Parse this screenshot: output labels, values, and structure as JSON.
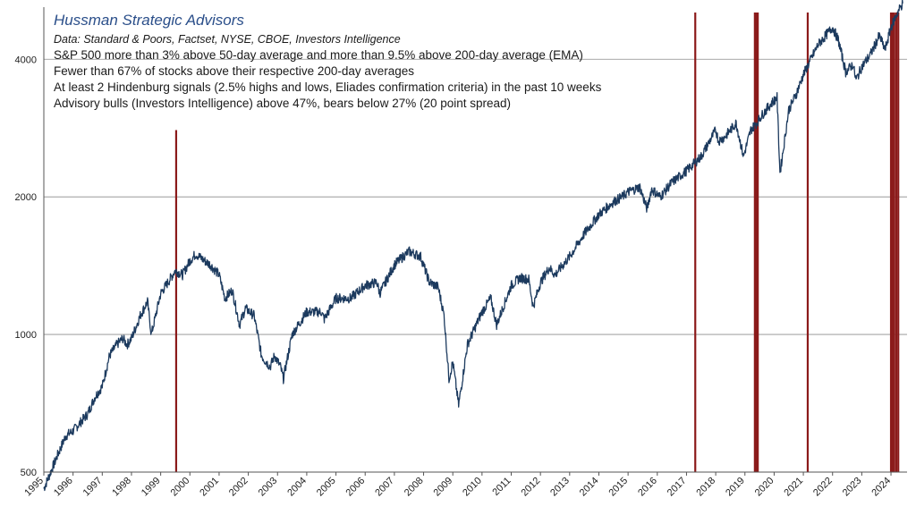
{
  "chart_data": {
    "type": "line",
    "title": "Hussman Strategic Advisors",
    "subtitle": "Data: Standard & Poors, Factset, NYSE, CBOE, Investors Intelligence",
    "annotations": [
      "S&P 500 more than 3% above 50-day average and more than 9.5% above 200-day average (EMA)",
      "Fewer than 67% of stocks above their respective 200-day averages",
      "At least 2 Hindenburg signals (2.5% highs and lows, Eliades confirmation criteria) in the past 10 weeks",
      "Advisory bulls (Investors Intelligence) above 47%, bears below 27% (20 point spread)"
    ],
    "y_scale": "log",
    "ylim": [
      500,
      5200
    ],
    "xlim": [
      1995.0,
      2024.55
    ],
    "y_ticks": [
      {
        "value": 500,
        "label": "500"
      },
      {
        "value": 1000,
        "label": "1000"
      },
      {
        "value": 2000,
        "label": "2000"
      },
      {
        "value": 4000,
        "label": "4000"
      }
    ],
    "x_ticks": [
      "1995",
      "1996",
      "1997",
      "1998",
      "1999",
      "2000",
      "2001",
      "2002",
      "2003",
      "2004",
      "2005",
      "2006",
      "2007",
      "2008",
      "2009",
      "2010",
      "2011",
      "2012",
      "2013",
      "2014",
      "2015",
      "2016",
      "2017",
      "2018",
      "2019",
      "2020",
      "2021",
      "2022",
      "2023",
      "2024"
    ],
    "grid": {
      "horizontal": true,
      "vertical": false
    },
    "line_color": "#1c3a5e",
    "signal_color": "#8b1a1a",
    "series": [
      {
        "x": [
          1995.0,
          1995.5,
          1995.75,
          1996.0,
          1996.5,
          1996.75,
          1997.0,
          1997.25,
          1997.5,
          1997.7,
          1997.85,
          1998.0,
          1998.3,
          1998.55,
          1998.68,
          1998.8,
          1999.0,
          1999.25,
          1999.5,
          1999.75,
          2000.0,
          2000.2,
          2000.5,
          2000.7,
          2001.0,
          2001.2,
          2001.45,
          2001.7,
          2001.9,
          2002.2,
          2002.45,
          2002.55,
          2002.75,
          2002.9,
          2003.1,
          2003.2,
          2003.5,
          2004.0,
          2004.5,
          2004.6,
          2005.0,
          2005.5,
          2006.0,
          2006.4,
          2006.5,
          2007.0,
          2007.3,
          2007.5,
          2007.7,
          2007.9,
          2008.2,
          2008.5,
          2008.7,
          2008.87,
          2009.0,
          2009.2,
          2009.5,
          2010.0,
          2010.3,
          2010.5,
          2011.0,
          2011.3,
          2011.6,
          2011.75,
          2012.0,
          2012.3,
          2012.5,
          2013.0,
          2013.5,
          2014.0,
          2014.5,
          2014.8,
          2015.0,
          2015.4,
          2015.65,
          2015.8,
          2016.1,
          2016.5,
          2017.0,
          2017.5,
          2018.0,
          2018.1,
          2018.3,
          2018.7,
          2018.95,
          2019.2,
          2019.4,
          2019.55,
          2019.9,
          2020.1,
          2020.2,
          2020.5,
          2020.75,
          2021.0,
          2021.5,
          2022.0,
          2022.2,
          2022.45,
          2022.7,
          2022.8,
          2023.0,
          2023.3,
          2023.6,
          2023.8,
          2024.0,
          2024.25,
          2024.4
        ],
        "values": [
          460,
          550,
          600,
          615,
          670,
          730,
          770,
          900,
          950,
          980,
          950,
          980,
          1100,
          1180,
          1000,
          1080,
          1230,
          1300,
          1380,
          1350,
          1450,
          1500,
          1450,
          1420,
          1350,
          1200,
          1250,
          1050,
          1140,
          1100,
          900,
          880,
          850,
          900,
          850,
          800,
          1000,
          1120,
          1120,
          1080,
          1200,
          1200,
          1280,
          1300,
          1230,
          1420,
          1480,
          1520,
          1500,
          1480,
          1300,
          1270,
          1100,
          800,
          870,
          700,
          950,
          1120,
          1200,
          1050,
          1280,
          1330,
          1320,
          1150,
          1300,
          1400,
          1350,
          1480,
          1660,
          1830,
          1950,
          2000,
          2050,
          2100,
          1880,
          2080,
          2000,
          2150,
          2280,
          2450,
          2800,
          2650,
          2700,
          2900,
          2450,
          2800,
          2900,
          3000,
          3200,
          3300,
          2250,
          3100,
          3350,
          3700,
          4300,
          4700,
          4400,
          3750,
          3900,
          3600,
          3850,
          4100,
          4500,
          4200,
          4700,
          5100,
          5300
        ]
      }
    ],
    "signal_dates": [
      1999.53,
      2017.3,
      2019.34,
      2019.39,
      2019.44,
      2021.15,
      2024.0,
      2024.05,
      2024.11,
      2024.18,
      2024.25
    ]
  }
}
